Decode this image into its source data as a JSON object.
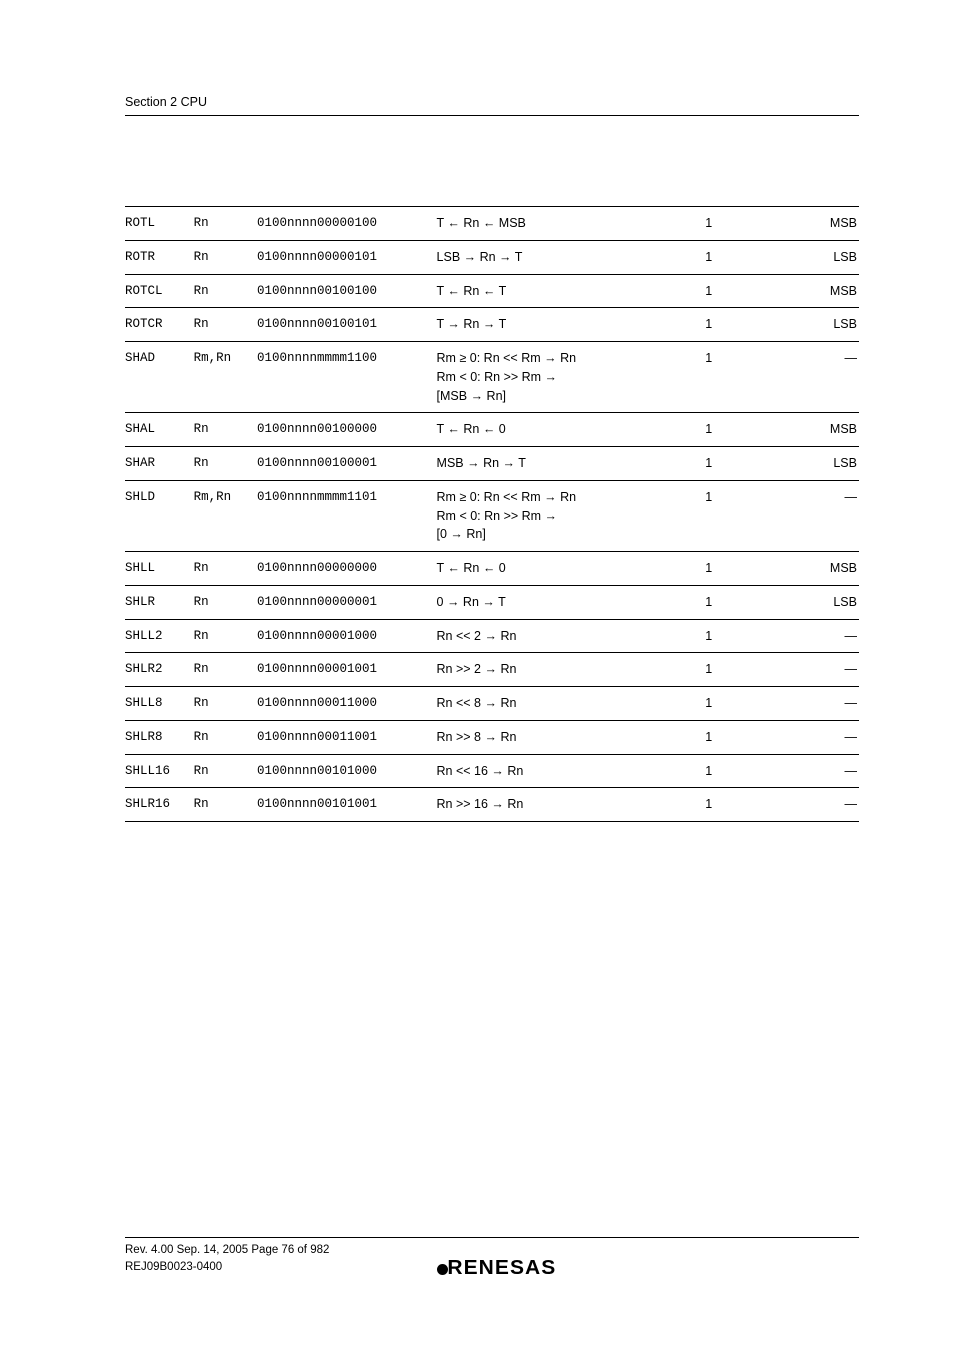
{
  "section_header": "Section 2   CPU",
  "rows": [
    {
      "mnem": "ROTL",
      "ops": "Rn",
      "code": "0100nnnn00000100",
      "op": "T ← Rn ← MSB",
      "cyc": "1",
      "tbit": "MSB"
    },
    {
      "mnem": "ROTR",
      "ops": "Rn",
      "code": "0100nnnn00000101",
      "op": "LSB → Rn → T",
      "cyc": "1",
      "tbit": "LSB"
    },
    {
      "mnem": "ROTCL",
      "ops": "Rn",
      "code": "0100nnnn00100100",
      "op": "T ← Rn ← T",
      "cyc": "1",
      "tbit": "MSB"
    },
    {
      "mnem": "ROTCR",
      "ops": "Rn",
      "code": "0100nnnn00100101",
      "op": "T → Rn → T",
      "cyc": "1",
      "tbit": "LSB"
    },
    {
      "mnem": "SHAD",
      "ops": "Rm,Rn",
      "code": "0100nnnnmmmm1100",
      "op": "Rm ≥ 0: Rn << Rm → Rn\nRm < 0: Rn >> Rm →\n[MSB → Rn]",
      "cyc": "1",
      "tbit": "—"
    },
    {
      "mnem": "SHAL",
      "ops": "Rn",
      "code": "0100nnnn00100000",
      "op": "T ← Rn ← 0",
      "cyc": "1",
      "tbit": "MSB"
    },
    {
      "mnem": "SHAR",
      "ops": "Rn",
      "code": "0100nnnn00100001",
      "op": "MSB → Rn → T",
      "cyc": "1",
      "tbit": "LSB"
    },
    {
      "mnem": "SHLD",
      "ops": "Rm,Rn",
      "code": "0100nnnnmmmm1101",
      "op": "Rm ≥ 0: Rn << Rm → Rn\nRm < 0: Rn >> Rm →\n[0 → Rn]",
      "cyc": "1",
      "tbit": "—"
    },
    {
      "mnem": "SHLL",
      "ops": "Rn",
      "code": "0100nnnn00000000",
      "op": "T ← Rn ← 0",
      "cyc": "1",
      "tbit": "MSB"
    },
    {
      "mnem": "SHLR",
      "ops": "Rn",
      "code": "0100nnnn00000001",
      "op": "0 → Rn → T",
      "cyc": "1",
      "tbit": "LSB"
    },
    {
      "mnem": "SHLL2",
      "ops": "Rn",
      "code": "0100nnnn00001000",
      "op": "Rn << 2 → Rn",
      "cyc": "1",
      "tbit": "—"
    },
    {
      "mnem": "SHLR2",
      "ops": "Rn",
      "code": "0100nnnn00001001",
      "op": "Rn >> 2 → Rn",
      "cyc": "1",
      "tbit": "—"
    },
    {
      "mnem": "SHLL8",
      "ops": "Rn",
      "code": "0100nnnn00011000",
      "op": "Rn << 8 → Rn",
      "cyc": "1",
      "tbit": "—"
    },
    {
      "mnem": "SHLR8",
      "ops": "Rn",
      "code": "0100nnnn00011001",
      "op": "Rn >> 8 → Rn",
      "cyc": "1",
      "tbit": "—"
    },
    {
      "mnem": "SHLL16",
      "ops": "Rn",
      "code": "0100nnnn00101000",
      "op": "Rn << 16 → Rn",
      "cyc": "1",
      "tbit": "—"
    },
    {
      "mnem": "SHLR16",
      "ops": "Rn",
      "code": "0100nnnn00101001",
      "op": "Rn >> 16 → Rn",
      "cyc": "1",
      "tbit": "—"
    }
  ],
  "footer": {
    "line1": "Rev. 4.00  Sep. 14, 2005  Page 76 of 982",
    "line2": "REJ09B0023-0400",
    "brand": "RENESAS"
  }
}
